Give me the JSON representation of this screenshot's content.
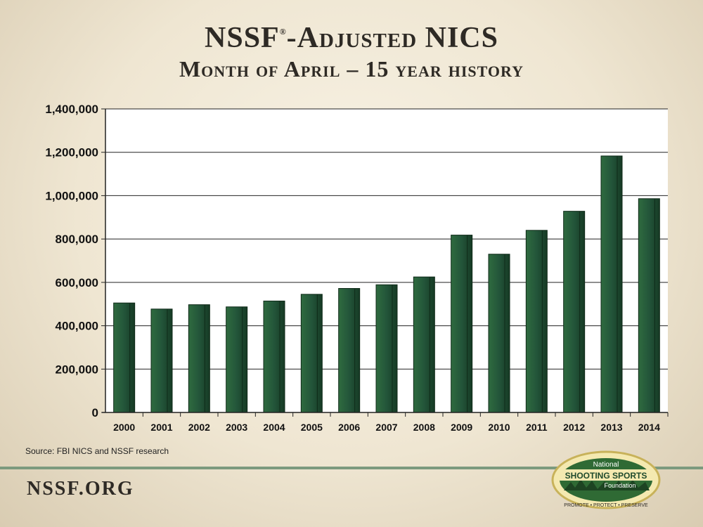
{
  "title": {
    "line1": "NSSF",
    "reg_mark": "®",
    "line1_rest": "-Adjusted NICS",
    "line2": "Month of April – 15 year history"
  },
  "source": "Source: FBI NICS and NSSF research",
  "footer": {
    "site": "NSSF.ORG"
  },
  "logo": {
    "word_top": "National",
    "word_main": "SHOOTING SPORTS",
    "word_bottom": "Foundation",
    "tagline": "PROMOTE • PROTECT • PRESERVE"
  },
  "colors": {
    "bar": "#1f4a2c",
    "bar_dark": "#0f2a18",
    "accent": "#7c9a7e"
  },
  "chart_data": {
    "type": "bar",
    "categories": [
      "2000",
      "2001",
      "2002",
      "2003",
      "2004",
      "2005",
      "2006",
      "2007",
      "2008",
      "2009",
      "2010",
      "2011",
      "2012",
      "2013",
      "2014"
    ],
    "values": [
      505000,
      477000,
      497000,
      487000,
      514000,
      545000,
      572000,
      589000,
      625000,
      818000,
      730000,
      840000,
      928000,
      1183000,
      986000
    ],
    "ylim": [
      0,
      1400000
    ],
    "yticks": [
      0,
      200000,
      400000,
      600000,
      800000,
      1000000,
      1200000,
      1400000
    ],
    "ytick_labels": [
      "0",
      "200,000",
      "400,000",
      "600,000",
      "800,000",
      "1,000,000",
      "1,200,000",
      "1,400,000"
    ],
    "grid": true,
    "xlabel": "",
    "ylabel": ""
  }
}
